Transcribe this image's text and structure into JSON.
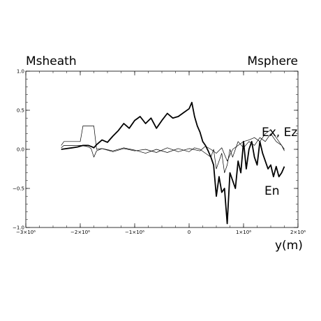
{
  "chart_data": {
    "type": "line",
    "xlim": [
      -3000000,
      2000000
    ],
    "ylim": [
      -1.0,
      1.0
    ],
    "grid": false,
    "x_ticks": [
      {
        "value": -3000000,
        "label": "−3×10⁶"
      },
      {
        "value": -2000000,
        "label": "−2×10⁶"
      },
      {
        "value": -1000000,
        "label": "−1×10⁶"
      },
      {
        "value": 0,
        "label": "0"
      },
      {
        "value": 1000000,
        "label": "1×10⁶"
      },
      {
        "value": 2000000,
        "label": "2×10⁶"
      }
    ],
    "y_ticks": [
      {
        "value": -1.0,
        "label": "−1.0"
      },
      {
        "value": -0.5,
        "label": "−0.5"
      },
      {
        "value": 0.0,
        "label": "0.0"
      },
      {
        "value": 0.5,
        "label": "0.5"
      },
      {
        "value": 1.0,
        "label": "1.0"
      }
    ],
    "xlabel": "y(m)",
    "ylabel": "",
    "annotations": {
      "left_region": "Msheath",
      "right_region": "Msphere",
      "series_label_ex_ez": "Ex, Ez",
      "series_label_en": "En"
    },
    "series": [
      {
        "name": "En",
        "stroke": "#000000",
        "stroke_width": 1.8,
        "x": [
          -2350000,
          -2150000,
          -2050000,
          -1950000,
          -1850000,
          -1780000,
          -1750000,
          -1700000,
          -1600000,
          -1500000,
          -1400000,
          -1300000,
          -1200000,
          -1100000,
          -1000000,
          -900000,
          -800000,
          -700000,
          -600000,
          -500000,
          -400000,
          -300000,
          -200000,
          -100000,
          0,
          50000,
          100000,
          150000,
          200000,
          250000,
          300000,
          350000,
          400000,
          450000,
          500000,
          550000,
          600000,
          650000,
          700000,
          750000,
          800000,
          850000,
          900000,
          950000,
          1000000,
          1050000,
          1100000,
          1150000,
          1200000,
          1250000,
          1300000,
          1350000,
          1400000,
          1450000,
          1500000,
          1550000,
          1600000,
          1650000,
          1700000,
          1750000
        ],
        "y": [
          0.0,
          0.02,
          0.03,
          0.05,
          0.05,
          0.03,
          0.02,
          0.06,
          0.12,
          0.09,
          0.17,
          0.24,
          0.33,
          0.27,
          0.37,
          0.42,
          0.33,
          0.4,
          0.27,
          0.37,
          0.46,
          0.4,
          0.42,
          0.47,
          0.52,
          0.6,
          0.42,
          0.3,
          0.22,
          0.1,
          0.05,
          -0.02,
          -0.1,
          -0.2,
          -0.6,
          -0.35,
          -0.55,
          -0.5,
          -0.95,
          -0.3,
          -0.4,
          -0.5,
          -0.15,
          -0.3,
          0.1,
          -0.25,
          0.0,
          0.1,
          -0.1,
          -0.2,
          0.1,
          -0.05,
          -0.15,
          -0.25,
          -0.2,
          -0.35,
          -0.22,
          -0.35,
          -0.3,
          -0.22
        ]
      },
      {
        "name": "Ex",
        "stroke": "#000000",
        "stroke_width": 0.7,
        "x": [
          -2350000,
          -2300000,
          -2100000,
          -2000000,
          -1900000,
          -1850000,
          -1800000,
          -1750000,
          -1700000,
          -1600000,
          -1400000,
          -1200000,
          -1000000,
          -800000,
          -600000,
          -400000,
          -200000,
          0,
          100000,
          200000,
          300000,
          400000,
          450000,
          500000,
          550000,
          600000,
          650000,
          700000,
          750000,
          800000,
          900000,
          1000000,
          1100000,
          1200000,
          1300000,
          1400000,
          1500000,
          1600000,
          1700000,
          1750000
        ],
        "y": [
          0.02,
          0.05,
          0.05,
          0.05,
          0.04,
          0.03,
          0.01,
          -0.1,
          -0.02,
          0.01,
          -0.02,
          0.02,
          -0.01,
          -0.05,
          0.0,
          -0.04,
          0.01,
          -0.03,
          0.02,
          0.0,
          -0.05,
          -0.1,
          0.0,
          -0.25,
          -0.15,
          -0.05,
          -0.3,
          -0.2,
          0.0,
          -0.1,
          0.1,
          0.02,
          0.1,
          0.05,
          0.15,
          0.1,
          0.2,
          0.1,
          0.05,
          -0.02
        ]
      },
      {
        "name": "Ez",
        "stroke": "#000000",
        "stroke_width": 0.7,
        "x": [
          -2350000,
          -2300000,
          -2000000,
          -1950000,
          -1750000,
          -1700000,
          -1600000,
          -1400000,
          -1200000,
          -1000000,
          -800000,
          -600000,
          -400000,
          -200000,
          0,
          200000,
          300000,
          400000,
          500000,
          600000,
          700000,
          800000,
          900000,
          1000000,
          1100000,
          1200000,
          1300000,
          1400000,
          1500000,
          1600000,
          1700000,
          1750000
        ],
        "y": [
          0.05,
          0.1,
          0.1,
          0.3,
          0.3,
          0.0,
          0.01,
          -0.03,
          0.01,
          -0.02,
          0.0,
          -0.04,
          0.02,
          -0.03,
          0.01,
          -0.02,
          0.04,
          0.0,
          -0.05,
          0.02,
          -0.15,
          0.0,
          0.05,
          0.1,
          0.12,
          0.15,
          0.1,
          0.2,
          0.25,
          0.15,
          0.05,
          0.0
        ]
      }
    ]
  }
}
